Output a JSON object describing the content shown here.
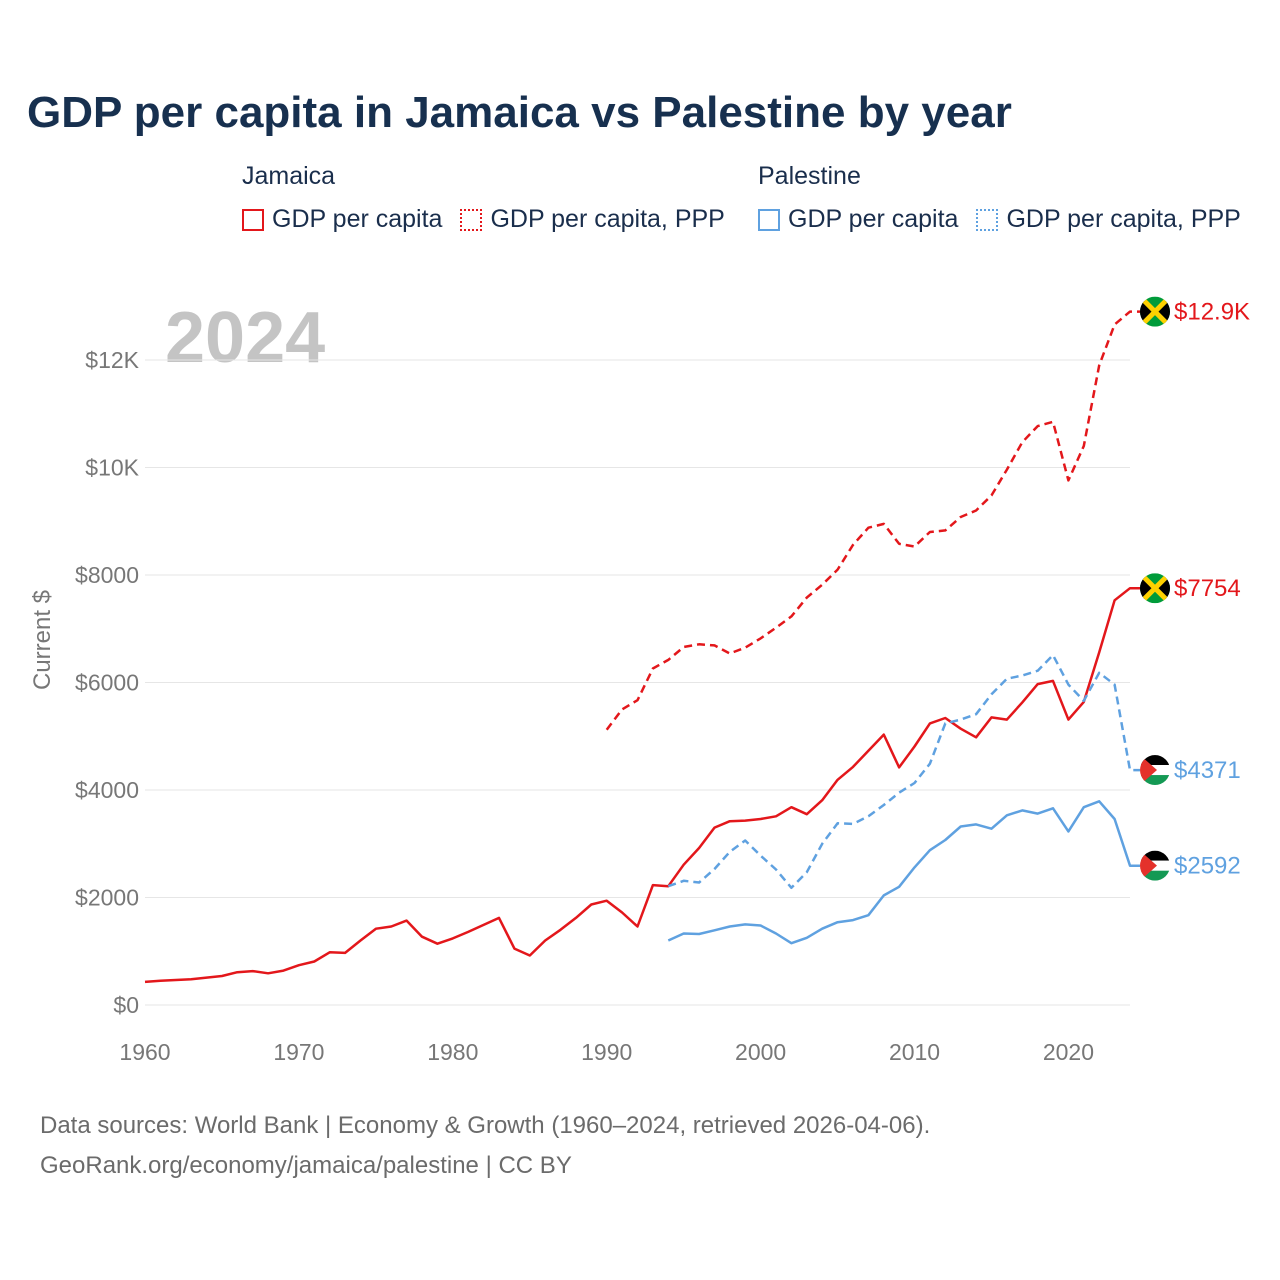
{
  "title": "GDP per capita in Jamaica vs Palestine by year",
  "year_watermark": "2024",
  "legend": {
    "groups": [
      {
        "label": "Jamaica",
        "items": [
          {
            "label": "GDP per capita",
            "color": "#e3171b",
            "style": "solid"
          },
          {
            "label": "GDP per capita, PPP",
            "color": "#e3171b",
            "style": "dotted"
          }
        ]
      },
      {
        "label": "Palestine",
        "items": [
          {
            "label": "GDP per capita",
            "color": "#5fa1e0",
            "style": "solid"
          },
          {
            "label": "GDP per capita, PPP",
            "color": "#5fa1e0",
            "style": "dotted"
          }
        ]
      }
    ]
  },
  "footer": {
    "line1": "Data sources: World Bank | Economy & Growth (1960–2024, retrieved 2026-04-06).",
    "line2": "GeoRank.org/economy/jamaica/palestine | CC BY"
  },
  "chart_data": {
    "type": "line",
    "title": "GDP per capita in Jamaica vs Palestine by year",
    "xlabel": "",
    "ylabel": "Current $",
    "xlim": [
      1960,
      2024
    ],
    "ylim": [
      0,
      13000
    ],
    "x_ticks": [
      1960,
      1970,
      1980,
      1990,
      2000,
      2010,
      2020
    ],
    "x_tick_labels": [
      "1960",
      "1970",
      "1980",
      "1990",
      "2000",
      "2010",
      "2020"
    ],
    "y_ticks": [
      0,
      2000,
      4000,
      6000,
      8000,
      10000,
      12000
    ],
    "y_tick_labels": [
      "$0",
      "$2000",
      "$4000",
      "$6000",
      "$8000",
      "$10K",
      "$12K"
    ],
    "grid": true,
    "series": [
      {
        "name": "Jamaica GDP per capita",
        "country": "Jamaica",
        "color": "#e3171b",
        "dash": "solid",
        "end_label": "$7754",
        "flag": "jamaica",
        "x": [
          1960,
          1961,
          1962,
          1963,
          1964,
          1965,
          1966,
          1967,
          1968,
          1969,
          1970,
          1971,
          1972,
          1973,
          1974,
          1975,
          1976,
          1977,
          1978,
          1979,
          1980,
          1981,
          1982,
          1983,
          1984,
          1985,
          1986,
          1987,
          1988,
          1989,
          1990,
          1991,
          1992,
          1993,
          1994,
          1995,
          1996,
          1997,
          1998,
          1999,
          2000,
          2001,
          2002,
          2003,
          2004,
          2005,
          2006,
          2007,
          2008,
          2009,
          2010,
          2011,
          2012,
          2013,
          2014,
          2015,
          2016,
          2017,
          2018,
          2019,
          2020,
          2021,
          2022,
          2023,
          2024
        ],
        "values": [
          430,
          450,
          465,
          480,
          510,
          540,
          610,
          630,
          590,
          640,
          740,
          810,
          980,
          970,
          1200,
          1420,
          1460,
          1570,
          1270,
          1140,
          1240,
          1360,
          1490,
          1620,
          1050,
          920,
          1200,
          1400,
          1620,
          1870,
          1940,
          1720,
          1460,
          2230,
          2210,
          2610,
          2920,
          3300,
          3420,
          3430,
          3460,
          3510,
          3680,
          3550,
          3810,
          4190,
          4430,
          4730,
          5030,
          4420,
          4810,
          5240,
          5340,
          5140,
          4980,
          5350,
          5310,
          5630,
          5970,
          6030,
          5310,
          5640,
          6560,
          7530,
          7754
        ]
      },
      {
        "name": "Jamaica GDP per capita, PPP",
        "country": "Jamaica",
        "color": "#e3171b",
        "dash": "dashed",
        "end_label": "$12.9K",
        "flag": "jamaica",
        "x": [
          1990,
          1991,
          1992,
          1993,
          1994,
          1995,
          1996,
          1997,
          1998,
          1999,
          2000,
          2001,
          2002,
          2003,
          2004,
          2005,
          2006,
          2007,
          2008,
          2009,
          2010,
          2011,
          2012,
          2013,
          2014,
          2015,
          2016,
          2017,
          2018,
          2019,
          2020,
          2021,
          2022,
          2023,
          2024
        ],
        "values": [
          5120,
          5500,
          5670,
          6260,
          6420,
          6660,
          6710,
          6690,
          6540,
          6650,
          6820,
          7020,
          7230,
          7580,
          7820,
          8100,
          8560,
          8880,
          8950,
          8580,
          8530,
          8800,
          8830,
          9080,
          9200,
          9480,
          9960,
          10470,
          10770,
          10850,
          9760,
          10400,
          11900,
          12660,
          12900
        ]
      },
      {
        "name": "Palestine GDP per capita",
        "country": "Palestine",
        "color": "#5fa1e0",
        "dash": "solid",
        "end_label": "$2592",
        "flag": "palestine",
        "x": [
          1994,
          1995,
          1996,
          1997,
          1998,
          1999,
          2000,
          2001,
          2002,
          2003,
          2004,
          2005,
          2006,
          2007,
          2008,
          2009,
          2010,
          2011,
          2012,
          2013,
          2014,
          2015,
          2016,
          2017,
          2018,
          2019,
          2020,
          2021,
          2022,
          2023,
          2024
        ],
        "values": [
          1200,
          1330,
          1320,
          1390,
          1460,
          1500,
          1480,
          1330,
          1150,
          1250,
          1420,
          1540,
          1580,
          1670,
          2040,
          2200,
          2560,
          2880,
          3070,
          3320,
          3360,
          3280,
          3530,
          3620,
          3560,
          3660,
          3230,
          3680,
          3790,
          3460,
          2592
        ]
      },
      {
        "name": "Palestine GDP per capita, PPP",
        "country": "Palestine",
        "color": "#5fa1e0",
        "dash": "dashed",
        "end_label": "$4371",
        "flag": "palestine",
        "x": [
          1994,
          1995,
          1996,
          1997,
          1998,
          1999,
          2000,
          2001,
          2002,
          2003,
          2004,
          2005,
          2006,
          2007,
          2008,
          2009,
          2010,
          2011,
          2012,
          2013,
          2014,
          2015,
          2016,
          2017,
          2018,
          2019,
          2020,
          2021,
          2022,
          2023,
          2024
        ],
        "values": [
          2210,
          2310,
          2280,
          2530,
          2850,
          3060,
          2780,
          2520,
          2180,
          2470,
          3000,
          3380,
          3370,
          3510,
          3720,
          3950,
          4130,
          4490,
          5240,
          5310,
          5410,
          5780,
          6070,
          6130,
          6220,
          6510,
          5960,
          5660,
          6180,
          5960,
          4371
        ]
      }
    ]
  }
}
